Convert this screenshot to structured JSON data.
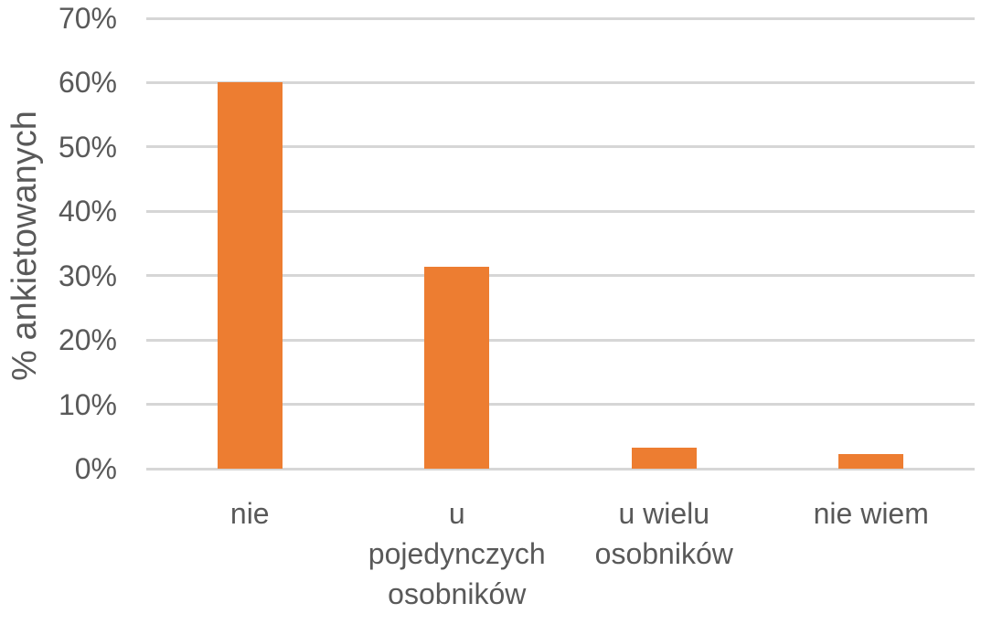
{
  "chart_data": {
    "type": "bar",
    "categories": [
      "nie",
      "u pojedynczych osobników",
      "u wielu osobników",
      "nie wiem"
    ],
    "values": [
      60,
      31.4,
      3.3,
      2.3
    ],
    "value_unit": "%",
    "title": "",
    "xlabel": "",
    "ylabel": "% ankietowanych",
    "ylim": [
      0,
      70
    ],
    "ytick_step": 10,
    "ytick_labels": [
      "0%",
      "10%",
      "20%",
      "30%",
      "40%",
      "50%",
      "60%",
      "70%"
    ],
    "grid": true,
    "legend_position": "none",
    "colors": {
      "bar": "#ED7D31",
      "gridline": "#D6D6D6",
      "axis_line": "#D6D6D6",
      "text": "#595959",
      "background": "#FFFFFF"
    }
  }
}
